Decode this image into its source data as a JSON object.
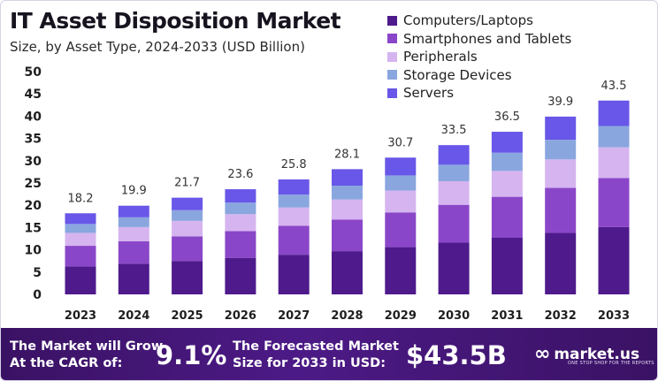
{
  "header": {
    "title": "IT Asset Disposition Market",
    "subtitle": "Size, by Asset Type, 2024-2033 (USD Billion)"
  },
  "chart_data": {
    "type": "bar",
    "stacked": true,
    "categories": [
      "2023",
      "2024",
      "2025",
      "2026",
      "2027",
      "2028",
      "2029",
      "2030",
      "2031",
      "2032",
      "2033"
    ],
    "totals": [
      18.2,
      19.9,
      21.7,
      23.6,
      25.8,
      28.1,
      30.7,
      33.5,
      36.5,
      39.9,
      43.5
    ],
    "total_labels": [
      "18.2",
      "19.9",
      "21.7",
      "23.6",
      "25.8",
      "28.1",
      "30.7",
      "33.5",
      "36.5",
      "39.9",
      "43.5"
    ],
    "series": [
      {
        "name": "Computers/Laptops",
        "color": "#4e1a8c",
        "values": [
          6.3,
          6.9,
          7.5,
          8.2,
          8.9,
          9.7,
          10.6,
          11.6,
          12.7,
          13.8,
          15.1
        ]
      },
      {
        "name": "Smartphones and Tablets",
        "color": "#8a46c8",
        "values": [
          4.6,
          5.0,
          5.5,
          6.0,
          6.5,
          7.1,
          7.8,
          8.5,
          9.2,
          10.1,
          11.0
        ]
      },
      {
        "name": "Peripherals",
        "color": "#d6b4f0",
        "values": [
          2.9,
          3.2,
          3.5,
          3.8,
          4.1,
          4.5,
          4.9,
          5.3,
          5.8,
          6.4,
          6.9
        ]
      },
      {
        "name": "Storage Devices",
        "color": "#8aa6df",
        "values": [
          2.0,
          2.2,
          2.4,
          2.6,
          2.9,
          3.1,
          3.4,
          3.7,
          4.1,
          4.4,
          4.8
        ]
      },
      {
        "name": "Servers",
        "color": "#6857e8",
        "values": [
          2.4,
          2.6,
          2.8,
          3.0,
          3.4,
          3.7,
          4.0,
          4.4,
          4.7,
          5.2,
          5.7
        ]
      }
    ],
    "y_ticks": [
      0,
      5,
      10,
      15,
      20,
      25,
      30,
      35,
      40,
      45,
      50
    ],
    "ylim": [
      0,
      50
    ],
    "grid": false,
    "legend_position": "top-right"
  },
  "banner": {
    "cagr_text_line1": "The Market will Grow",
    "cagr_text_line2": "At the CAGR of:",
    "cagr_value": "9.1%",
    "forecast_text_line1": "The Forecasted Market",
    "forecast_text_line2": "Size for 2033 in USD:",
    "forecast_value": "$43.5B",
    "brand_name": "market.us",
    "brand_tagline": "ONE STOP SHOP FOR THE REPORTS",
    "background_color": "#3a1264"
  }
}
